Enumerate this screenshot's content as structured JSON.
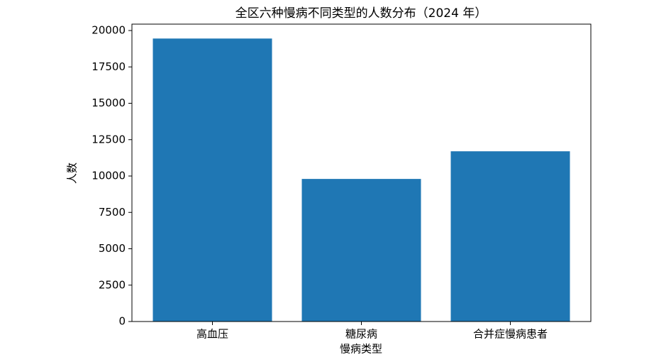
{
  "chart_data": {
    "type": "bar",
    "title": "全区六种慢病不同类型的人数分布（2024 年）",
    "xlabel": "慢病类型",
    "ylabel": "人数",
    "categories": [
      "高血压",
      "糖尿病",
      "合并症慢病患者"
    ],
    "values": [
      19450,
      9800,
      11700
    ],
    "color": "#1f77b4",
    "ylim": [
      0,
      20440
    ],
    "yticks": [
      0,
      2500,
      5000,
      7500,
      10000,
      12500,
      15000,
      17500,
      20000
    ],
    "grid": false
  }
}
